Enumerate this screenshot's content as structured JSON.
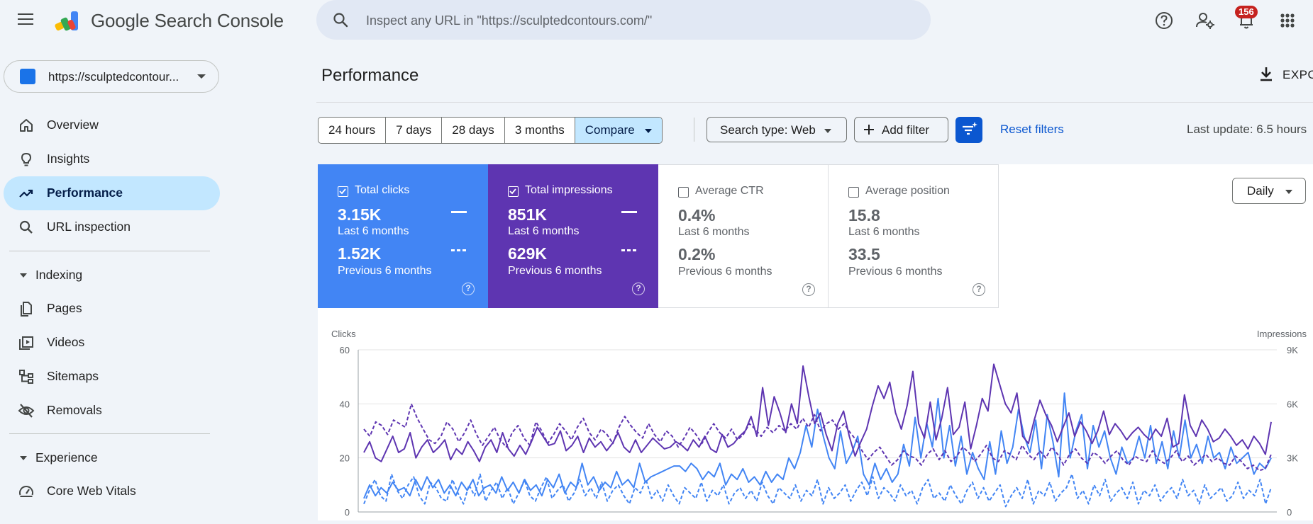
{
  "app": {
    "product_name": "Google Search Console"
  },
  "search": {
    "placeholder": "Inspect any URL in \"https://sculptedcontours.com/\""
  },
  "top_icons": [
    "help-icon",
    "manage-users-icon",
    "notifications-icon",
    "apps-grid-icon"
  ],
  "notifications": {
    "count": "156"
  },
  "property": {
    "label": "https://sculptedcontour..."
  },
  "sidebar": {
    "items": [
      {
        "label": "Overview",
        "icon": "home-icon"
      },
      {
        "label": "Insights",
        "icon": "lightbulb-icon"
      },
      {
        "label": "Performance",
        "icon": "trending-up-icon",
        "active": true
      },
      {
        "label": "URL inspection",
        "icon": "search-icon"
      }
    ],
    "indexing_header": "Indexing",
    "indexing_items": [
      {
        "label": "Pages",
        "icon": "pages-icon"
      },
      {
        "label": "Videos",
        "icon": "video-icon"
      },
      {
        "label": "Sitemaps",
        "icon": "sitemap-icon"
      },
      {
        "label": "Removals",
        "icon": "eye-off-icon"
      }
    ],
    "experience_header": "Experience",
    "experience_items": [
      {
        "label": "Core Web Vitals",
        "icon": "gauge-icon"
      }
    ]
  },
  "page": {
    "title": "Performance",
    "export_label": "EXPO"
  },
  "filters": {
    "ranges": [
      "24 hours",
      "7 days",
      "28 days",
      "3 months",
      "Compare"
    ],
    "selected_range": "Compare",
    "search_type": "Search type: Web",
    "add_filter": "Add filter",
    "reset": "Reset filters",
    "last_update": "Last update: 6.5 hours"
  },
  "metrics": [
    {
      "title": "Total clicks",
      "checked": true,
      "current": "3.15K",
      "current_label": "Last 6 months",
      "previous": "1.52K",
      "previous_label": "Previous 6 months",
      "color": "#4285f4"
    },
    {
      "title": "Total impressions",
      "checked": true,
      "current": "851K",
      "current_label": "Last 6 months",
      "previous": "629K",
      "previous_label": "Previous 6 months",
      "color": "#5e35b1"
    },
    {
      "title": "Average CTR",
      "checked": false,
      "current": "0.4%",
      "current_label": "Last 6 months",
      "previous": "0.2%",
      "previous_label": "Previous 6 months",
      "color": "#00897b"
    },
    {
      "title": "Average position",
      "checked": false,
      "current": "15.8",
      "current_label": "Last 6 months",
      "previous": "33.5",
      "previous_label": "Previous 6 months",
      "color": "#e8710a"
    }
  ],
  "granularity": "Daily",
  "chart_data": {
    "type": "line",
    "left_axis": {
      "label": "Clicks",
      "ticks": [
        "0",
        "20",
        "40",
        "60"
      ],
      "range": [
        0,
        60
      ]
    },
    "right_axis": {
      "label": "Impressions",
      "ticks": [
        "0",
        "3K",
        "6K",
        "9K"
      ],
      "range": [
        0,
        9000
      ]
    },
    "grid": true,
    "series": [
      {
        "name": "Total clicks",
        "period": "Last 6 months",
        "style": "solid",
        "color": "#4285f4",
        "axis": "left",
        "values": [
          5,
          10,
          6,
          9,
          7,
          11,
          8,
          9,
          6,
          12,
          8,
          13,
          9,
          12,
          7,
          10,
          6,
          11,
          8,
          12,
          6,
          9,
          10,
          7,
          13,
          8,
          11,
          7,
          12,
          8,
          10,
          6,
          12,
          9,
          14,
          7,
          11,
          9,
          18,
          10,
          13,
          8,
          11,
          9,
          15,
          10,
          12,
          9,
          18,
          11,
          13,
          14,
          15,
          16,
          17,
          17,
          15,
          18,
          16,
          12,
          15,
          13,
          18,
          10,
          14,
          12,
          16,
          11,
          13,
          10,
          15,
          11,
          14,
          12,
          20,
          16,
          22,
          32,
          24,
          38,
          28,
          20,
          16,
          30,
          18,
          22,
          28,
          14,
          10,
          18,
          12,
          16,
          11,
          14,
          25,
          17,
          35,
          20,
          33,
          24,
          42,
          20,
          32,
          17,
          28,
          14,
          22,
          16,
          12,
          26,
          14,
          30,
          18,
          24,
          38,
          28,
          22,
          34,
          16,
          36,
          26,
          13,
          44,
          20,
          30,
          36,
          16,
          32,
          24,
          30,
          20,
          14,
          24,
          18,
          20,
          28,
          20,
          32,
          18,
          26,
          16,
          30,
          20,
          34,
          20,
          25,
          18,
          28,
          20,
          22,
          16,
          24,
          18,
          20,
          22,
          14,
          18,
          16,
          20
        ]
      },
      {
        "name": "Total clicks",
        "period": "Previous 6 months",
        "style": "dashed",
        "color": "#4285f4",
        "axis": "left",
        "values": [
          3,
          8,
          12,
          6,
          4,
          14,
          8,
          5,
          10,
          13,
          6,
          3,
          11,
          9,
          5,
          4,
          12,
          7,
          3,
          10,
          6,
          14,
          4,
          8,
          11,
          5,
          9,
          3,
          7,
          12,
          6,
          4,
          9,
          13,
          5,
          8,
          10,
          4,
          7,
          12,
          6,
          9,
          5,
          11,
          4,
          8,
          10,
          6,
          3,
          9,
          7,
          12,
          5,
          8,
          4,
          10,
          6,
          3,
          9,
          7,
          5,
          11,
          4,
          8,
          6,
          10,
          3,
          7,
          9,
          5,
          8,
          4,
          11,
          6,
          3,
          9,
          7,
          5,
          10,
          4,
          8,
          6,
          12,
          3,
          9,
          5,
          7,
          10,
          4,
          8,
          11,
          6,
          13,
          5,
          9,
          7,
          4,
          10,
          6,
          8,
          3,
          9,
          12,
          5,
          7,
          4,
          10,
          6,
          3,
          8,
          11,
          5,
          9,
          4,
          7,
          10,
          2,
          6,
          9,
          5,
          12,
          3,
          8,
          6,
          11,
          4,
          7,
          9,
          14,
          5,
          8,
          3,
          10,
          6,
          12,
          4,
          7,
          9,
          5,
          11,
          3,
          8,
          6,
          10,
          4,
          7,
          9,
          5,
          12,
          6,
          8,
          3,
          10,
          5,
          7,
          9,
          4,
          6,
          11,
          5,
          8,
          6,
          12,
          3,
          9
        ]
      },
      {
        "name": "Total impressions",
        "period": "Last 6 months",
        "style": "solid",
        "color": "#5e35b1",
        "axis": "right",
        "values": [
          3300,
          3900,
          3000,
          2800,
          3500,
          4200,
          3300,
          3500,
          4400,
          3000,
          3600,
          4000,
          3300,
          3600,
          4000,
          2900,
          3500,
          3200,
          3900,
          3400,
          2800,
          3600,
          4000,
          3300,
          4400,
          3500,
          3100,
          3700,
          3200,
          3900,
          4700,
          4200,
          3700,
          3800,
          4500,
          3400,
          3700,
          4200,
          3300,
          4100,
          3600,
          3900,
          3400,
          3800,
          4400,
          3600,
          3300,
          4000,
          3300,
          3700,
          4100,
          3800,
          3500,
          3600,
          3900,
          3700,
          3400,
          4000,
          3600,
          4200,
          3500,
          3300,
          4300,
          3600,
          3800,
          4200,
          4500,
          5300,
          4200,
          6900,
          4800,
          6400,
          5500,
          4400,
          6000,
          4900,
          8100,
          6400,
          4900,
          5500,
          4300,
          3400,
          4900,
          5600,
          4200,
          3100,
          3900,
          4600,
          5900,
          7000,
          6300,
          7200,
          5500,
          4600,
          5900,
          7800,
          4900,
          4100,
          6100,
          4000,
          5200,
          6900,
          4300,
          4700,
          6100,
          3500,
          4800,
          6300,
          5600,
          8200,
          7100,
          6000,
          5500,
          6600,
          4200,
          3800,
          5100,
          6200,
          5400,
          4800,
          3900,
          4700,
          5500,
          4200,
          5000,
          4500,
          3800,
          4500,
          5600,
          4300,
          4900,
          4500,
          4000,
          4400,
          4700,
          4300,
          4000,
          4600,
          4200,
          5200,
          3600,
          3800,
          6500,
          4800,
          4200,
          5100,
          4600,
          3900,
          4100,
          4600,
          4200,
          3700,
          4000,
          3500,
          4200,
          3800,
          3200,
          5000
        ]
      },
      {
        "name": "Total impressions",
        "period": "Previous 6 months",
        "style": "dashed",
        "color": "#5e35b1",
        "axis": "right",
        "values": [
          4600,
          4200,
          5000,
          4800,
          4300,
          5100,
          4900,
          4700,
          6000,
          5200,
          4600,
          4000,
          3800,
          4200,
          5000,
          4600,
          3900,
          4400,
          5100,
          4300,
          3700,
          4200,
          4700,
          4000,
          3600,
          4400,
          4800,
          4100,
          3700,
          5000,
          4500,
          3800,
          4300,
          4900,
          4500,
          4000,
          4700,
          5200,
          4400,
          4000,
          4600,
          4300,
          3800,
          4700,
          5300,
          4800,
          4400,
          4100,
          4900,
          4300,
          3900,
          4500,
          4200,
          3600,
          4100,
          4700,
          4300,
          3800,
          4400,
          4900,
          4400,
          4100,
          4600,
          4000,
          4300,
          4900,
          4600,
          4200,
          4700,
          4400,
          4800,
          4500,
          4900,
          4600,
          5200,
          4700,
          5400,
          4500,
          4900,
          5100,
          4600,
          4900,
          4400,
          4000,
          3400,
          2900,
          3300,
          3600,
          3100,
          2600,
          2900,
          3400,
          3100,
          3000,
          2600,
          3200,
          3500,
          2900,
          3400,
          2800,
          3100,
          3600,
          3300,
          2800,
          3200,
          3700,
          3000,
          2800,
          3400,
          3200,
          2900,
          3700,
          3200,
          2900,
          3400,
          3000,
          3600,
          3200,
          2600,
          3200,
          3500,
          3000,
          2700,
          3300,
          3100,
          2700,
          3100,
          3400,
          2900,
          2600,
          3100,
          2900,
          2800,
          3400,
          2900,
          2700,
          3000,
          3400,
          2800,
          3100,
          2600,
          2900,
          3200,
          2800,
          3000,
          2700,
          2600,
          3100,
          2800,
          2400,
          2600,
          2300,
          2400,
          3200
        ]
      }
    ]
  }
}
